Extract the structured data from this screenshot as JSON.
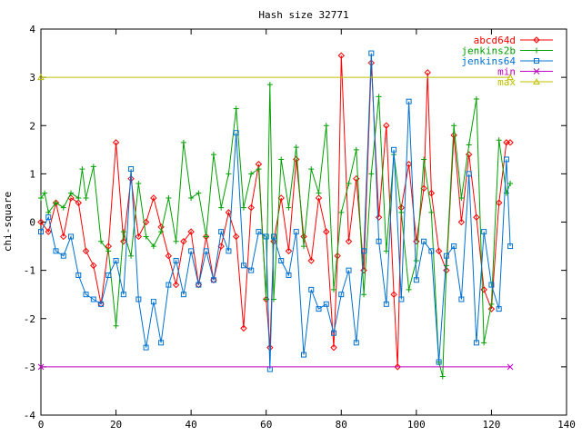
{
  "chart_data": {
    "type": "line",
    "title": "Hash size 32771",
    "xlabel": "",
    "ylabel": "chi-square",
    "xlim": [
      0,
      140
    ],
    "ylim": [
      -4,
      4
    ],
    "xticks": [
      "0",
      "20",
      "40",
      "60",
      "80",
      "100",
      "120",
      "140"
    ],
    "yticks": [
      "4",
      "3",
      "2",
      "1",
      "0",
      "-1",
      "-2",
      "-3",
      "-4"
    ],
    "grid": false,
    "legend_position": "top-right",
    "series": [
      {
        "name": "abcd64d",
        "color": "#ff0000",
        "marker": "diamond",
        "x": [
          0,
          2,
          4,
          6,
          8,
          10,
          12,
          14,
          16,
          18,
          20,
          22,
          24,
          26,
          28,
          30,
          32,
          34,
          36,
          38,
          40,
          42,
          44,
          46,
          48,
          50,
          52,
          54,
          56,
          58,
          60,
          61,
          62,
          64,
          66,
          68,
          70,
          72,
          74,
          76,
          78,
          79,
          80,
          82,
          84,
          86,
          88,
          90,
          92,
          94,
          95,
          96,
          98,
          100,
          102,
          103,
          104,
          106,
          108,
          110,
          112,
          114,
          116,
          118,
          120,
          122,
          124,
          125
        ],
        "y": [
          0.0,
          -0.2,
          0.4,
          -0.3,
          0.5,
          0.4,
          -0.6,
          -0.9,
          -1.7,
          -0.5,
          1.65,
          -0.4,
          0.9,
          -0.3,
          0.0,
          0.5,
          -0.1,
          -0.7,
          -1.3,
          -0.4,
          -0.2,
          -1.3,
          -0.3,
          -1.2,
          -0.5,
          0.2,
          -0.3,
          -2.2,
          0.3,
          1.2,
          -1.6,
          -2.6,
          -0.4,
          0.5,
          -0.6,
          1.3,
          -0.3,
          -0.8,
          0.5,
          -0.2,
          -2.6,
          -0.7,
          3.45,
          -0.4,
          0.9,
          -1.0,
          3.3,
          0.1,
          2.0,
          -1.5,
          -3.0,
          0.3,
          1.2,
          -0.4,
          0.7,
          3.1,
          0.6,
          -0.6,
          -1.0,
          1.8,
          0.0,
          1.4,
          0.1,
          -1.4,
          -1.8,
          0.4,
          1.65,
          1.65
        ]
      },
      {
        "name": "jenkins2b",
        "color": "#00a000",
        "marker": "plus",
        "x": [
          0,
          1,
          2,
          4,
          6,
          8,
          10,
          11,
          12,
          14,
          16,
          18,
          20,
          22,
          24,
          26,
          28,
          30,
          32,
          34,
          36,
          38,
          40,
          42,
          44,
          46,
          48,
          50,
          52,
          54,
          56,
          58,
          60,
          61,
          62,
          64,
          66,
          68,
          70,
          72,
          74,
          76,
          78,
          80,
          82,
          84,
          86,
          88,
          90,
          92,
          94,
          96,
          98,
          100,
          102,
          104,
          106,
          107,
          108,
          110,
          112,
          114,
          116,
          118,
          120,
          122,
          124,
          125
        ],
        "y": [
          0.5,
          0.6,
          0.2,
          0.4,
          0.3,
          0.6,
          0.5,
          1.1,
          0.5,
          1.15,
          -0.4,
          -0.6,
          -2.15,
          -0.2,
          -0.7,
          0.8,
          -0.3,
          -0.5,
          -0.2,
          0.5,
          -0.4,
          1.65,
          0.5,
          0.6,
          -0.3,
          1.4,
          0.3,
          1.0,
          2.35,
          0.3,
          1.0,
          1.1,
          -1.6,
          2.85,
          -1.6,
          1.3,
          0.3,
          1.55,
          -0.5,
          1.1,
          0.6,
          2.0,
          -1.4,
          0.2,
          0.8,
          1.5,
          -1.5,
          1.0,
          2.6,
          -0.6,
          1.4,
          0.2,
          -1.4,
          -0.8,
          1.3,
          0.2,
          -2.9,
          -3.2,
          -0.9,
          2.0,
          0.5,
          1.6,
          2.55,
          -2.5,
          -1.7,
          1.7,
          0.6,
          0.8
        ]
      },
      {
        "name": "jenkins64",
        "color": "#0070d0",
        "marker": "square",
        "x": [
          0,
          2,
          4,
          6,
          8,
          10,
          12,
          14,
          16,
          18,
          20,
          22,
          24,
          26,
          28,
          30,
          32,
          34,
          36,
          38,
          40,
          42,
          44,
          46,
          48,
          50,
          52,
          54,
          56,
          58,
          60,
          61,
          62,
          64,
          66,
          68,
          70,
          72,
          74,
          76,
          78,
          80,
          82,
          84,
          86,
          88,
          90,
          92,
          94,
          96,
          98,
          100,
          102,
          104,
          106,
          108,
          110,
          112,
          114,
          116,
          118,
          120,
          122,
          124,
          125
        ],
        "y": [
          -0.2,
          0.1,
          -0.6,
          -0.7,
          -0.3,
          -1.1,
          -1.5,
          -1.6,
          -1.7,
          -1.1,
          -0.8,
          -1.5,
          1.1,
          -1.6,
          -2.6,
          -1.65,
          -2.5,
          -1.3,
          -0.8,
          -1.5,
          -0.6,
          -1.3,
          -0.6,
          -1.2,
          -0.2,
          -0.6,
          1.85,
          -0.9,
          -1.0,
          -0.2,
          -0.3,
          -3.05,
          -0.3,
          -0.8,
          -1.1,
          -0.2,
          -2.75,
          -1.4,
          -1.8,
          -1.7,
          -2.3,
          -1.5,
          -1.0,
          -2.5,
          -0.6,
          3.5,
          -0.4,
          -1.7,
          1.5,
          -1.6,
          2.5,
          -1.2,
          -0.4,
          -0.6,
          -2.9,
          -0.7,
          -0.5,
          -1.6,
          1.0,
          -2.5,
          -0.2,
          -1.3,
          -1.8,
          1.3,
          -0.5
        ]
      },
      {
        "name": "min",
        "color": "#c000c0",
        "marker": "x",
        "x": [
          0,
          125
        ],
        "y": [
          -3.0,
          -3.0
        ]
      },
      {
        "name": "max",
        "color": "#c0c000",
        "marker": "triangle",
        "x": [
          0,
          125
        ],
        "y": [
          3.0,
          3.0
        ]
      }
    ]
  }
}
